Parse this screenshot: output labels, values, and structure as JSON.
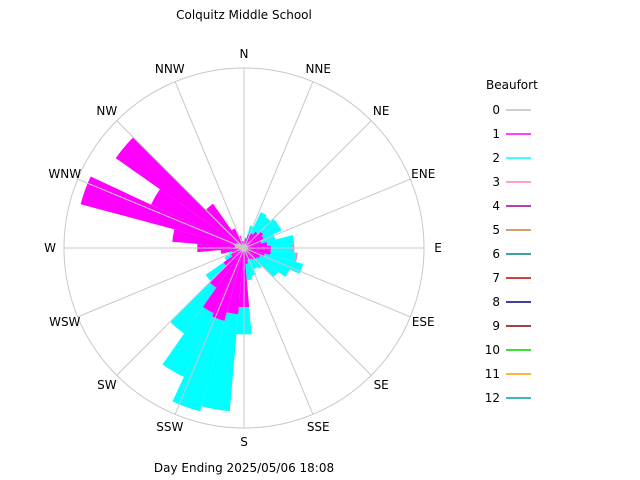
{
  "chart_data": {
    "type": "wind-rose",
    "title": "Colquitz Middle School",
    "footer": "Day Ending 2025/05/06 18:08",
    "directions": [
      "N",
      "NNE",
      "NE",
      "ENE",
      "E",
      "ESE",
      "SE",
      "SSE",
      "S",
      "SSW",
      "SW",
      "WSW",
      "W",
      "WNW",
      "NW",
      "NNW"
    ],
    "legend_title": "Beaufort",
    "legend": [
      {
        "label": "0",
        "color": "#bfbfbf"
      },
      {
        "label": "1",
        "color": "#ff00ff"
      },
      {
        "label": "2",
        "color": "#00ffff"
      },
      {
        "label": "3",
        "color": "#ff7fbf"
      },
      {
        "label": "4",
        "color": "#9b009b"
      },
      {
        "label": "5",
        "color": "#c08040"
      },
      {
        "label": "6",
        "color": "#008080"
      },
      {
        "label": "7",
        "color": "#c00000"
      },
      {
        "label": "8",
        "color": "#000080"
      },
      {
        "label": "9",
        "color": "#800000"
      },
      {
        "label": "10",
        "color": "#00d000"
      },
      {
        "label": "11",
        "color": "#ff9900"
      },
      {
        "label": "12",
        "color": "#00a0a0"
      }
    ],
    "frequency_units": "fraction of max ring",
    "bins_deg": [
      0,
      10,
      20,
      30,
      40,
      50,
      60,
      70,
      80,
      90,
      100,
      110,
      120,
      130,
      140,
      150,
      160,
      170,
      180,
      190,
      200,
      210,
      220,
      230,
      240,
      250,
      260,
      270,
      280,
      290,
      300,
      310,
      320,
      330,
      340,
      350
    ],
    "series": [
      {
        "beaufort": "0",
        "values": [
          0.02,
          0.02,
          0.02,
          0.02,
          0.02,
          0.02,
          0.02,
          0.02,
          0.02,
          0.02,
          0.02,
          0.02,
          0.02,
          0.02,
          0.02,
          0.02,
          0.02,
          0.02,
          0.02,
          0.02,
          0.02,
          0.02,
          0.02,
          0.02,
          0.02,
          0.02,
          0.03,
          0.04,
          0.05,
          0.06,
          0.05,
          0.04,
          0.02,
          0.02,
          0.02,
          0.02
        ]
      },
      {
        "beaufort": "1",
        "values": [
          0.02,
          0.03,
          0.06,
          0.07,
          0.09,
          0.11,
          0.1,
          0.08,
          0.11,
          0.13,
          0.13,
          0.1,
          0.08,
          0.07,
          0.06,
          0.05,
          0.05,
          0.07,
          0.31,
          0.35,
          0.4,
          0.38,
          0.25,
          0.12,
          0.06,
          0.05,
          0.1,
          0.22,
          0.35,
          0.88,
          0.52,
          0.83,
          0.28,
          0.1,
          0.05,
          0.02
        ]
      },
      {
        "beaufort": "2",
        "values": [
          0.0,
          0.01,
          0.05,
          0.13,
          0.1,
          0.1,
          0.11,
          0.08,
          0.15,
          0.12,
          0.14,
          0.22,
          0.18,
          0.14,
          0.06,
          0.06,
          0.09,
          0.09,
          0.15,
          0.54,
          0.52,
          0.39,
          0.31,
          0.12,
          0.04,
          0.02,
          0.0,
          0.0,
          0.0,
          0.0,
          0.0,
          0.0,
          0.0,
          0.0,
          0.0,
          0.0
        ]
      },
      {
        "beaufort": "3",
        "values": [
          0,
          0,
          0,
          0,
          0,
          0,
          0,
          0,
          0,
          0.01,
          0.01,
          0,
          0,
          0,
          0,
          0,
          0,
          0,
          0,
          0,
          0,
          0,
          0,
          0,
          0,
          0,
          0,
          0,
          0,
          0,
          0,
          0,
          0,
          0,
          0,
          0
        ]
      }
    ]
  }
}
